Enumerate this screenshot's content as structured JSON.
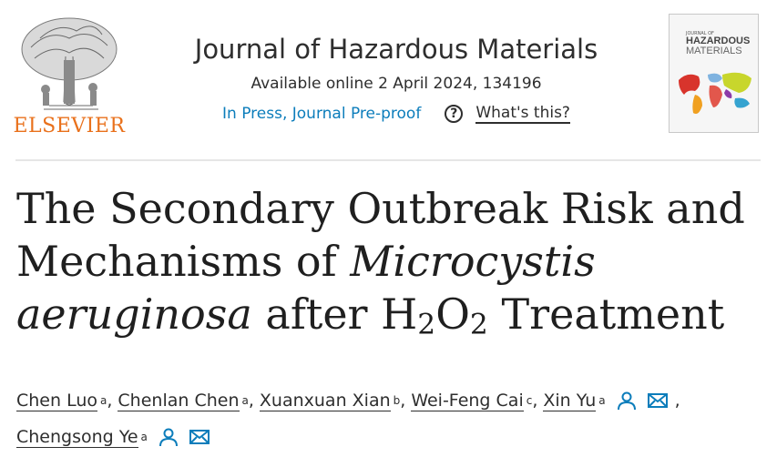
{
  "publisher": {
    "name": "ELSEVIER",
    "brand_color": "#e9711c"
  },
  "journal": {
    "title": "Journal of Hazardous Materials",
    "availability": "Available online 2 April 2024, 134196",
    "status_link": "In Press, Journal Pre-proof",
    "help_symbol": "?",
    "help_label": "What's this?",
    "link_color": "#0c7dbb"
  },
  "cover": {
    "small_text": "JOURNAL OF",
    "title_line1": "HAZARDOUS",
    "title_line2": "MATERIALS"
  },
  "article": {
    "title_part1": "The Secondary Outbreak Risk and Mechanisms of ",
    "title_italic": "Microcystis aeruginosa",
    "title_part2": " after H",
    "title_sub1": "2",
    "title_part3": "O",
    "title_sub2": "2",
    "title_part4": " Treatment"
  },
  "authors": [
    {
      "name": "Chen Luo",
      "aff": "a"
    },
    {
      "name": "Chenlan Chen",
      "aff": "a"
    },
    {
      "name": "Xuanxuan Xian",
      "aff": "b"
    },
    {
      "name": "Wei-Feng Cai",
      "aff": "c"
    },
    {
      "name": "Xin Yu",
      "aff": "a",
      "icons": [
        "person-icon",
        "envelope-icon"
      ]
    },
    {
      "name": "Chengsong Ye",
      "aff": "a",
      "icons": [
        "person-icon",
        "envelope-icon"
      ]
    }
  ],
  "separator": ","
}
